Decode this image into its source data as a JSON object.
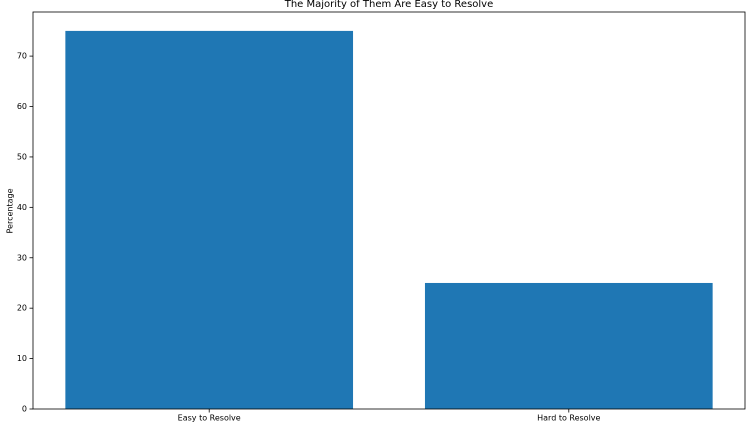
{
  "chart_data": {
    "type": "bar",
    "title": "The Majority of Them Are Easy to Resolve",
    "ylabel": "Percentage",
    "categories": [
      "Easy to Resolve",
      "Hard to Resolve"
    ],
    "values": [
      75,
      25
    ],
    "color": "#1f77b4",
    "ylim": [
      0,
      78.75
    ],
    "yticks": [
      0,
      10,
      20,
      30,
      40,
      50,
      60,
      70
    ],
    "grid": false
  }
}
